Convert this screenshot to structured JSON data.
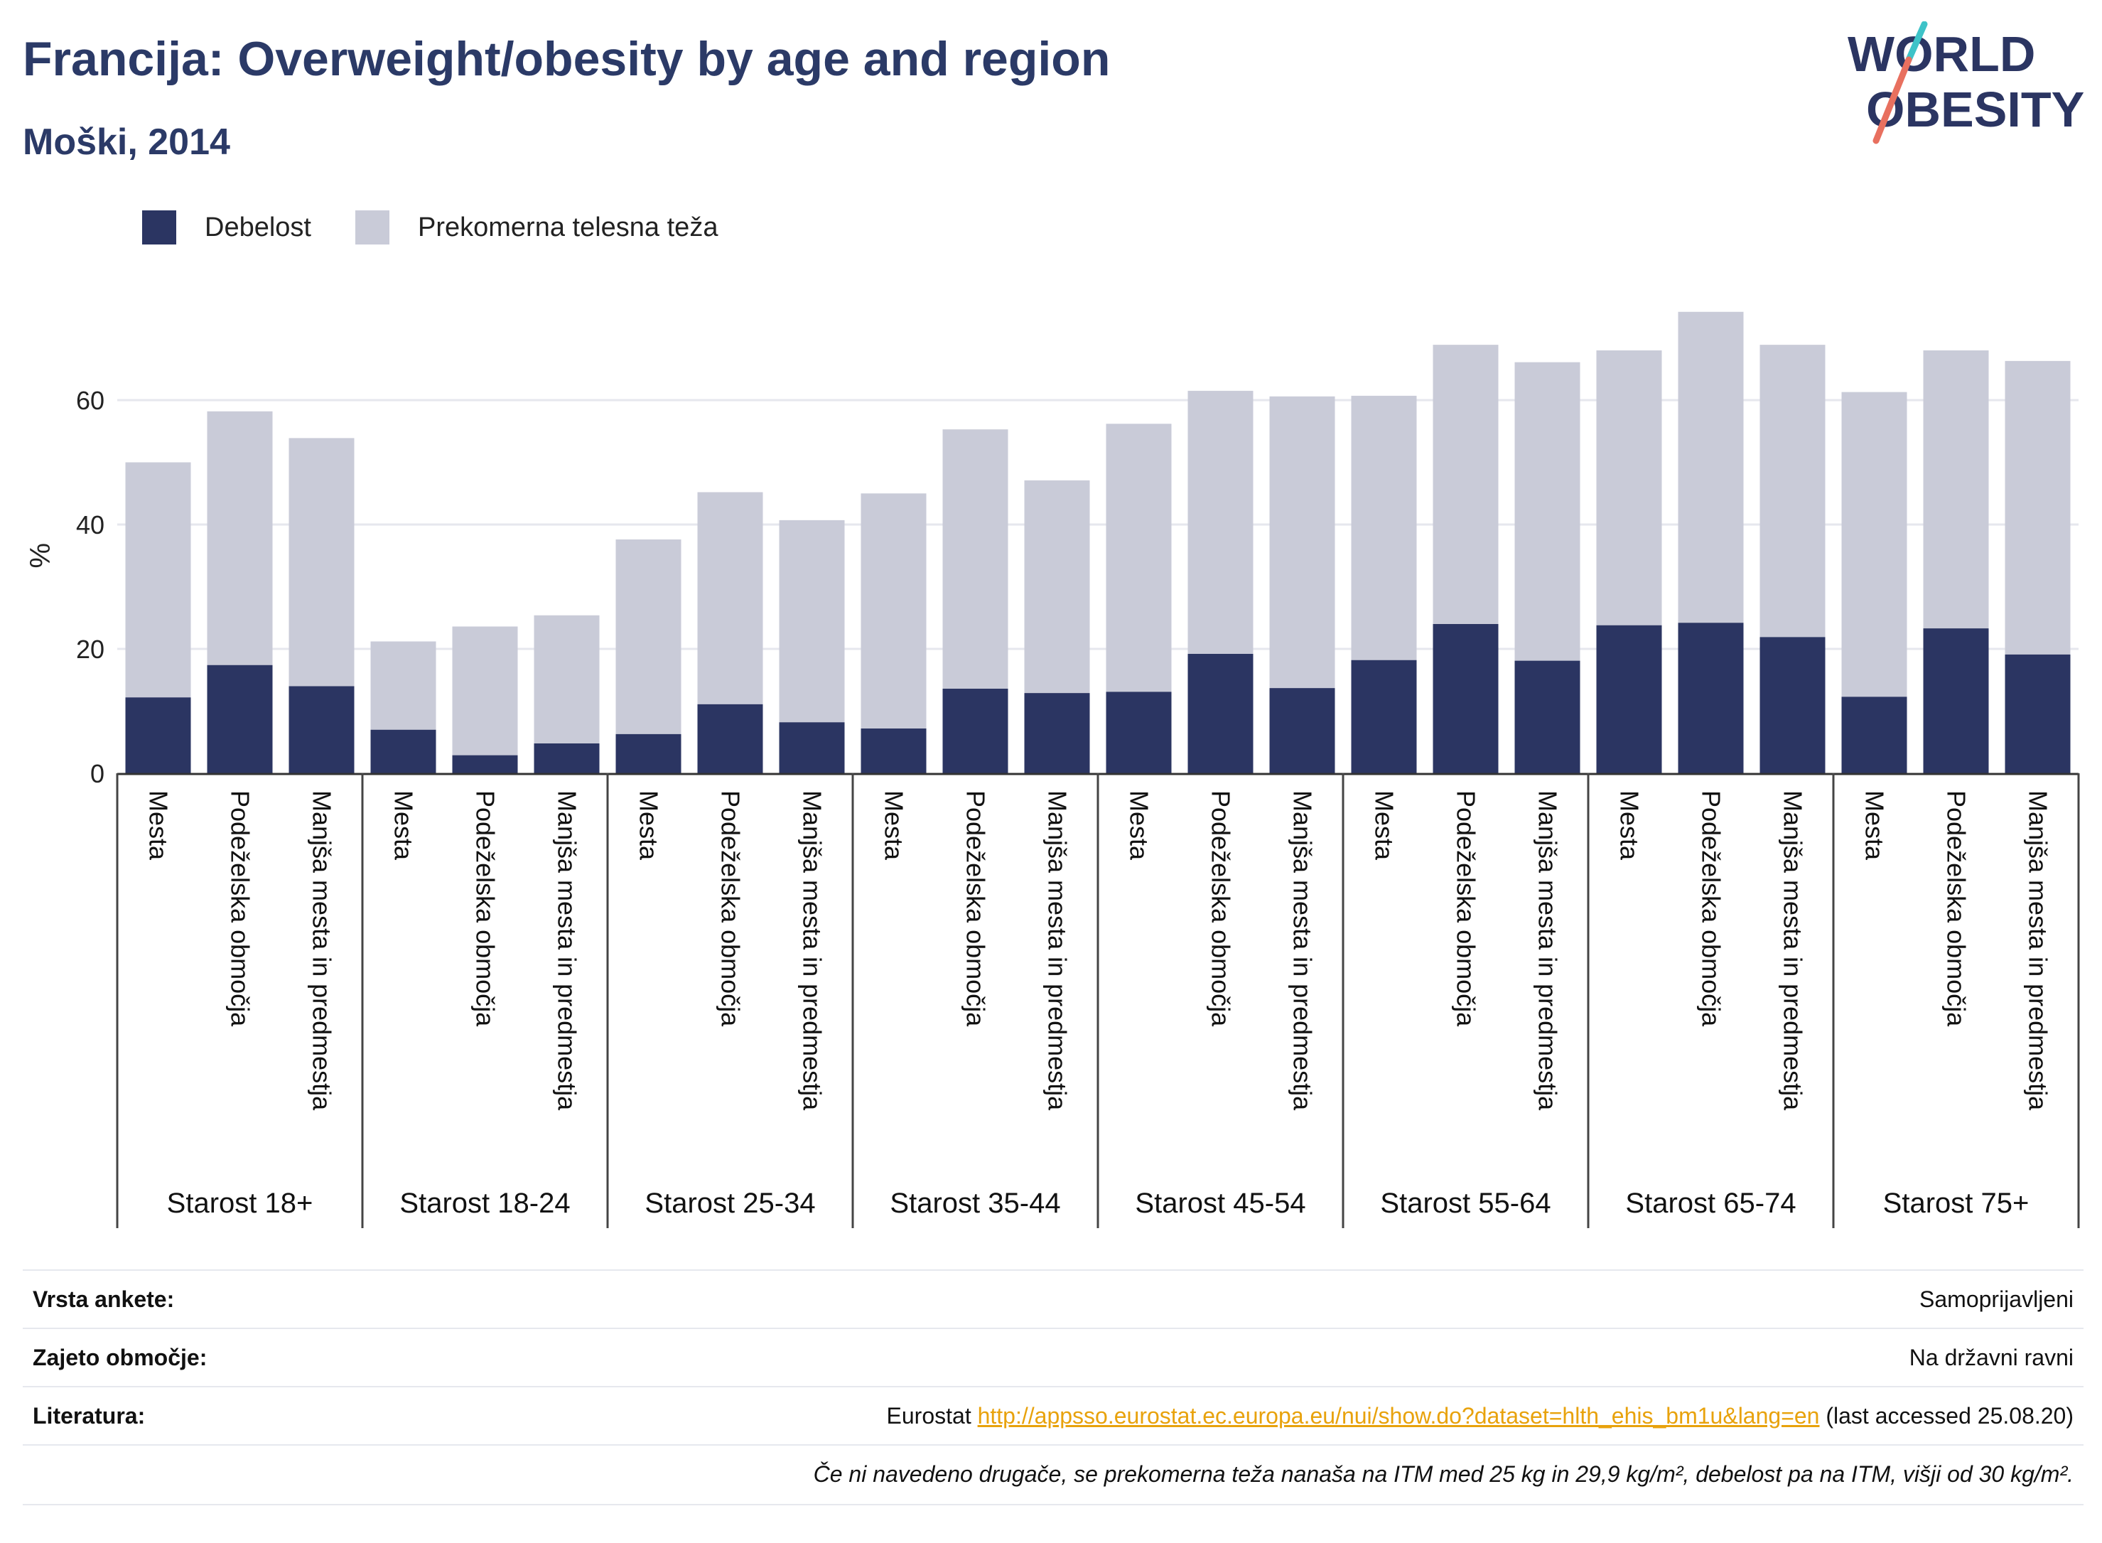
{
  "header": {
    "title": "Francija: Overweight/obesity by age and region",
    "subtitle": "Moški, 2014"
  },
  "logo": {
    "line1": "WORLD",
    "line2": "OBESITY"
  },
  "colors": {
    "obesity": "#2b3562",
    "overweight": "#c9cbd8",
    "accent_teal": "#3ec3c8",
    "accent_coral": "#e8705f",
    "link": "#e8a20c"
  },
  "legend": [
    {
      "label": "Debelost",
      "color": "#2b3562"
    },
    {
      "label": "Prekomerna telesna teža",
      "color": "#c9cbd8"
    }
  ],
  "chart_data": {
    "type": "bar",
    "stacked": true,
    "ylabel": "%",
    "ylim": [
      0,
      80
    ],
    "yticks": [
      0,
      20,
      40,
      60
    ],
    "grid": true,
    "legend_position": "top-left",
    "groups": [
      "Starost 18+",
      "Starost 18-24",
      "Starost 25-34",
      "Starost 35-44",
      "Starost 45-54",
      "Starost 55-64",
      "Starost 65-74",
      "Starost 75+"
    ],
    "subcategories": [
      "Mesta",
      "Podeželska območja",
      "Manjša mesta in predmestja"
    ],
    "series": [
      {
        "name": "Debelost",
        "values": [
          12.2,
          17.4,
          14.0,
          7.0,
          2.9,
          4.8,
          6.3,
          11.1,
          8.2,
          7.2,
          13.6,
          12.9,
          13.1,
          19.2,
          13.7,
          18.2,
          24.0,
          18.1,
          23.8,
          24.2,
          21.9,
          12.3,
          23.3,
          19.1
        ]
      },
      {
        "name": "Prekomerna telesna teža",
        "values": [
          37.8,
          40.8,
          39.9,
          14.2,
          20.7,
          20.6,
          31.3,
          34.1,
          32.5,
          37.8,
          41.7,
          34.2,
          43.1,
          42.3,
          46.9,
          42.5,
          44.9,
          48.0,
          44.2,
          50.0,
          47.0,
          49.0,
          44.7,
          47.2
        ]
      }
    ]
  },
  "info": {
    "rows": [
      {
        "key": "Vrsta ankete:",
        "value": "Samoprijavljeni"
      },
      {
        "key": "Zajeto območje:",
        "value": "Na državni ravni"
      }
    ],
    "literature": {
      "key": "Literatura:",
      "prefix": "Eurostat ",
      "url": "http://appsso.eurostat.ec.europa.eu/nui/show.do?dataset=hlth_ehis_bm1u&lang=en",
      "suffix": " (last accessed 25.08.20)"
    },
    "note": "Če ni navedeno drugače, se prekomerna teža nanaša na ITM med 25 kg in 29,9 kg/m², debelost pa na ITM, višji od 30 kg/m²."
  }
}
